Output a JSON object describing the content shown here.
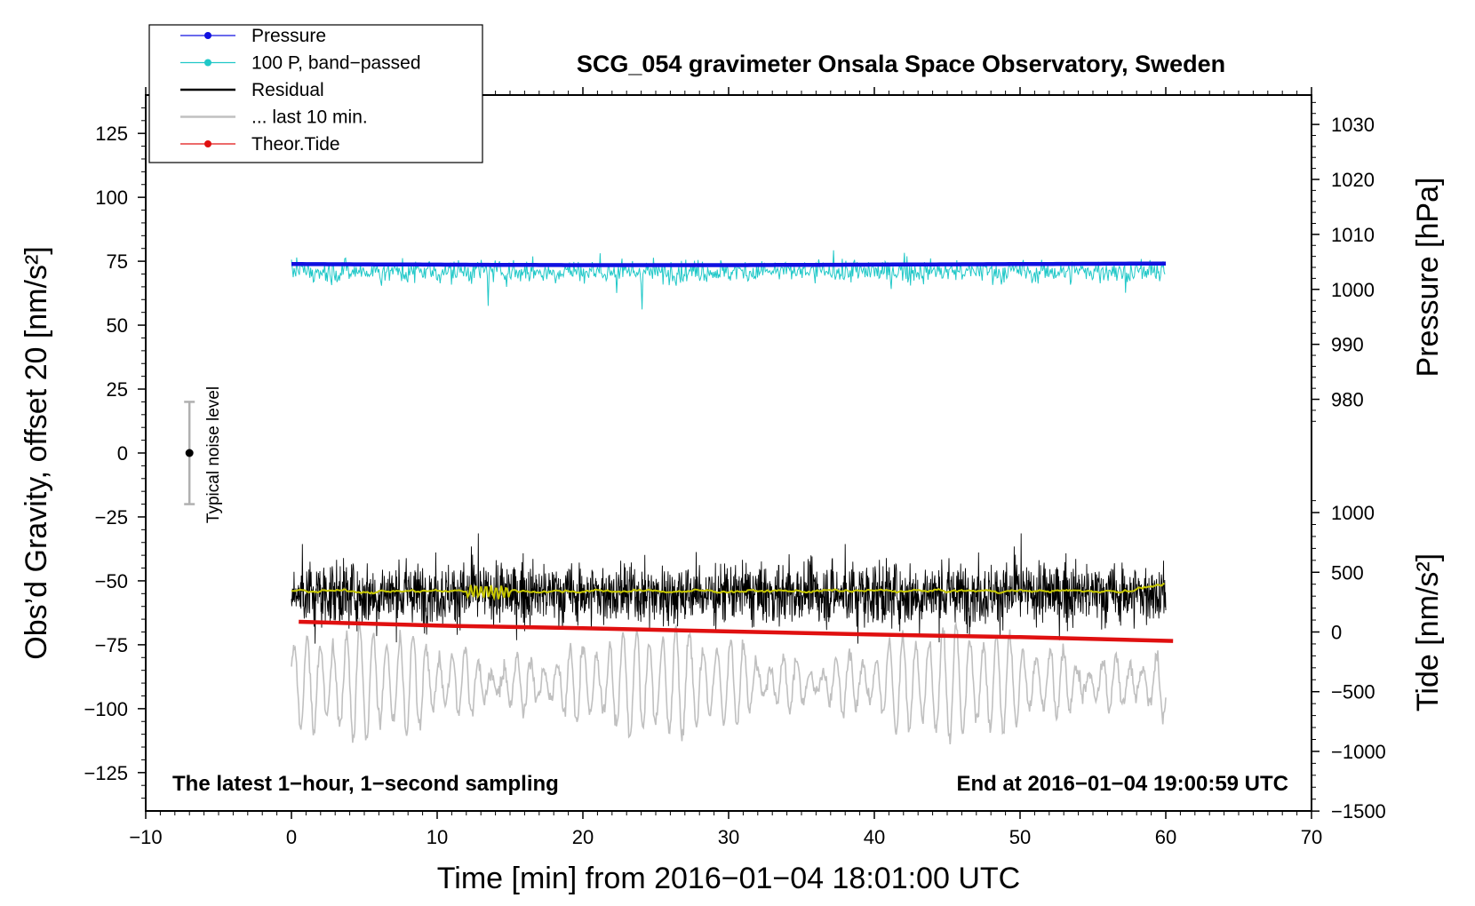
{
  "chart_data": {
    "type": "line",
    "title": "SCG_054 gravimeter Onsala Space Observatory, Sweden",
    "xlabel": "Time [min] from 2016−01−04 18:01:00 UTC",
    "ylabel_left": "Obs’d Gravity, offset 20 [nm/s²]",
    "ylabel_right_top": "Pressure [hPa]",
    "ylabel_right_bottom": "Tide [nm/s²]",
    "xlim": [
      -10,
      70
    ],
    "ylim_left": [
      -140,
      140
    ],
    "x_ticks": [
      -10,
      0,
      10,
      20,
      30,
      40,
      50,
      60,
      70
    ],
    "x_tick_labels": [
      "−10",
      "0",
      "10",
      "20",
      "30",
      "40",
      "50",
      "60",
      "70"
    ],
    "y_ticks_left": [
      125,
      100,
      75,
      50,
      25,
      0,
      -25,
      -50,
      -75,
      -100,
      -125
    ],
    "y_tick_labels_left": [
      "125",
      "100",
      "75",
      "50",
      "25",
      "0",
      "−25",
      "−50",
      "−75",
      "−100",
      "−125"
    ],
    "pressure_axis": {
      "ticks": [
        1030,
        1020,
        1010,
        1000,
        990,
        980
      ],
      "tick_labels": [
        "1030",
        "1020",
        "1010",
        "1000",
        "990",
        "980"
      ],
      "map": {
        "hpa_ref": 1000,
        "gravity_at_ref": 64,
        "gravity_per_hpa": 2.15
      }
    },
    "tide_axis": {
      "ticks": [
        1000,
        500,
        0,
        -500,
        -1000,
        -1500
      ],
      "tick_labels": [
        "1000",
        "500",
        "0",
        "−500",
        "−1000",
        "−1500"
      ],
      "map": {
        "tide_ref": 0,
        "gravity_at_ref": -70,
        "gravity_per_unit": 0.0467
      }
    },
    "legend": {
      "placement": "top-left",
      "entries": [
        {
          "label": "Pressure",
          "color": "#1010e0",
          "marker": true
        },
        {
          "label": "100 P, band−passed",
          "color": "#20c8c8",
          "marker": true
        },
        {
          "label": "Residual",
          "color": "#000000",
          "marker": false
        },
        {
          "label": "... last 10 min.",
          "color": "#c0c0c0",
          "marker": false
        },
        {
          "label": "Theor.Tide",
          "color": "#e01010",
          "marker": true
        }
      ]
    },
    "series": [
      {
        "name": "Pressure",
        "color": "#1010e0",
        "x_range": [
          0,
          60
        ],
        "mean_gravity_units": 74.6,
        "pressure_hpa": [
          1004.6,
          1004.5,
          1004.4,
          1004.4,
          1004.5,
          1004.6,
          1004.7
        ]
      },
      {
        "name": "100 P, band−passed",
        "color": "#20c8c8",
        "x_range": [
          0,
          60
        ],
        "mean": 71,
        "spread": [
          53,
          83
        ]
      },
      {
        "name": "Residual",
        "color": "#000000",
        "x_range": [
          0,
          60
        ],
        "mean": -55,
        "spread": [
          -90,
          -20
        ]
      },
      {
        "name": "Residual smoothed",
        "color": "#c8c800",
        "x_range": [
          0,
          60
        ],
        "mean": -54
      },
      {
        "name": "... last 10 min.",
        "color": "#c0c0c0",
        "x_range": [
          0,
          60
        ],
        "mean": -90,
        "spread": [
          -115,
          -62
        ]
      },
      {
        "name": "Theor.Tide",
        "color": "#e01010",
        "x": [
          0.5,
          10,
          20,
          30,
          40,
          50,
          60.5
        ],
        "y": [
          -66,
          -67.5,
          -68.5,
          -69.8,
          -71,
          -72,
          -73.5
        ]
      }
    ],
    "noise_bar": {
      "label": "Typical noise level",
      "x": -7,
      "center": 0,
      "low": -20,
      "high": 20
    },
    "annotations": {
      "bottom_left": "The latest 1−hour, 1−second sampling",
      "bottom_right": "End at 2016−01−04 19:00:59 UTC"
    },
    "colors": {
      "pressure": "#1010e0",
      "band": "#20c8c8",
      "residual": "#000000",
      "smooth": "#c8c800",
      "last10": "#c0c0c0",
      "tide": "#e01010"
    }
  }
}
